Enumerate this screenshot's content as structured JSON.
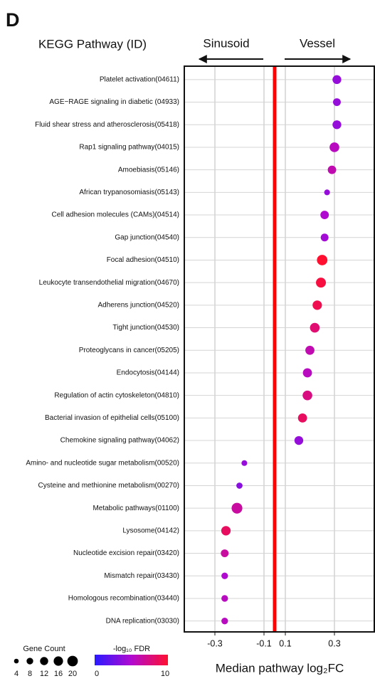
{
  "panel_label": "D",
  "chart_data": {
    "type": "dot",
    "y_axis_title": "KEGG Pathway (ID)",
    "direction_labels": [
      "Sinusoid",
      "Vessel"
    ],
    "x_axis_title": "Median pathway log₂FC",
    "categories": [
      "Platelet activation(04611)",
      "AGE−RAGE signaling in diabetic (04933)",
      "Fluid shear stress and atherosclerosis(05418)",
      "Rap1 signaling pathway(04015)",
      "Amoebiasis(05146)",
      "African trypanosomiasis(05143)",
      "Cell adhesion molecules (CAMs)(04514)",
      "Gap junction(04540)",
      "Focal adhesion(04510)",
      "Leukocyte transendothelial migration(04670)",
      "Adherens junction(04520)",
      "Tight junction(04530)",
      "Proteoglycans in cancer(05205)",
      "Endocytosis(04144)",
      "Regulation of actin cytoskeleton(04810)",
      "Bacterial invasion of epithelial cells(05100)",
      "Chemokine signaling pathway(04062)",
      "Amino- and nucleotide sugar metabolism(00520)",
      "Cysteine and methionine metabolism(00270)",
      "Metabolic pathways(01100)",
      "Lysosome(04142)",
      "Nucleotide excision repair(03420)",
      "Mismatch repair(03430)",
      "Homologous recombination(03440)",
      "DNA replication(03030)"
    ],
    "values": [
      0.31,
      0.31,
      0.31,
      0.3,
      0.29,
      0.27,
      0.26,
      0.26,
      0.25,
      0.245,
      0.23,
      0.22,
      0.2,
      0.19,
      0.19,
      0.17,
      0.155,
      -0.18,
      -0.2,
      -0.21,
      -0.255,
      -0.26,
      -0.26,
      -0.26,
      -0.26
    ],
    "sizes": [
      14,
      11,
      14,
      17,
      13,
      6,
      13,
      11,
      20,
      18,
      16,
      17,
      15,
      15,
      17,
      15,
      14,
      6,
      7,
      21,
      16,
      11,
      8,
      8,
      8
    ],
    "fdr": [
      4,
      4,
      4,
      5.5,
      6,
      4,
      5,
      4.5,
      10,
      9.5,
      9,
      8,
      6,
      5.5,
      7.5,
      8.5,
      4,
      4,
      3.5,
      6.5,
      8.5,
      6.5,
      5,
      5.5,
      5.5
    ],
    "xlim": [
      -0.425,
      0.465
    ],
    "xticks": [
      -0.3,
      -0.1,
      0.1,
      0.3
    ],
    "grid": true,
    "zero_line_color": "#ff0000",
    "size_legend": {
      "title": "Gene Count",
      "ticks": [
        4,
        8,
        12,
        16,
        20
      ]
    },
    "color_legend": {
      "title": "-log₁₀ FDR",
      "ticks": [
        0,
        10
      ],
      "colors": [
        "#2a1aff",
        "#b00ad0",
        "#ff1030"
      ]
    }
  }
}
